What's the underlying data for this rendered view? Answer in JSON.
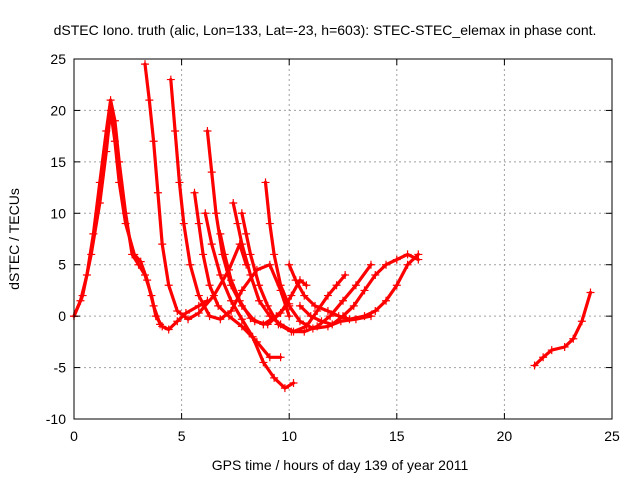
{
  "chart_data": {
    "type": "scatter",
    "title": "dSTEC Iono. truth (alic, Lon=133, Lat=-23, h=603): STEC-STEC_elemax in phase cont.",
    "xlabel": "GPS time / hours of day 139 of year 2011",
    "ylabel": "dSTEC  / TECUs",
    "xlim": [
      0,
      25
    ],
    "ylim": [
      -10,
      25
    ],
    "xticks": [
      0,
      5,
      10,
      15,
      20,
      25
    ],
    "yticks": [
      -10,
      -5,
      0,
      5,
      10,
      15,
      20,
      25
    ],
    "xtick_labels": [
      "0",
      "5",
      "10",
      "15",
      "20",
      "25"
    ],
    "ytick_labels": [
      "-10",
      "-5",
      "0",
      "5",
      "10",
      "15",
      "20",
      "25"
    ],
    "grid": true,
    "marker": "plus",
    "color": "#ff0000",
    "series": [
      {
        "points": [
          [
            0,
            0
          ],
          [
            0.3,
            1.5
          ],
          [
            0.6,
            4
          ],
          [
            0.9,
            8
          ],
          [
            1.2,
            13
          ],
          [
            1.5,
            18
          ],
          [
            1.7,
            21
          ],
          [
            1.9,
            19
          ],
          [
            2.1,
            15
          ],
          [
            2.4,
            10
          ],
          [
            2.7,
            6
          ],
          [
            3,
            5
          ],
          [
            3.3,
            4
          ],
          [
            3.6,
            2
          ],
          [
            3.8,
            0
          ],
          [
            4.1,
            -1
          ],
          [
            4.4,
            -1.3
          ],
          [
            4.8,
            -0.5
          ],
          [
            5.2,
            0.3
          ],
          [
            5.8,
            1
          ],
          [
            6.2,
            1.5
          ]
        ]
      },
      {
        "points": [
          [
            0,
            0
          ],
          [
            0.4,
            2
          ],
          [
            0.8,
            6
          ],
          [
            1.2,
            11
          ],
          [
            1.5,
            16
          ],
          [
            1.7,
            20
          ],
          [
            1.9,
            17
          ],
          [
            2.1,
            13
          ],
          [
            2.4,
            9
          ],
          [
            2.8,
            6
          ],
          [
            3.1,
            5.3
          ],
          [
            3.4,
            3.5
          ],
          [
            3.7,
            1
          ],
          [
            4,
            -0.8
          ]
        ]
      },
      {
        "points": [
          [
            3.3,
            24.5
          ],
          [
            3.5,
            21
          ],
          [
            3.7,
            17
          ],
          [
            3.9,
            12
          ],
          [
            4.1,
            7
          ],
          [
            4.4,
            3
          ],
          [
            4.8,
            0.5
          ],
          [
            5.3,
            -0.3
          ],
          [
            5.8,
            0.3
          ],
          [
            6.5,
            2
          ],
          [
            7.2,
            4.5
          ],
          [
            7.7,
            7
          ],
          [
            8,
            5
          ]
        ]
      },
      {
        "points": [
          [
            4.5,
            23
          ],
          [
            4.7,
            18
          ],
          [
            4.9,
            13
          ],
          [
            5.1,
            9
          ],
          [
            5.4,
            5
          ],
          [
            5.8,
            2
          ],
          [
            6.3,
            0
          ],
          [
            6.8,
            -0.3
          ],
          [
            7.3,
            0.5
          ],
          [
            7.8,
            2.5
          ],
          [
            8.5,
            4.5
          ],
          [
            9.1,
            5
          ],
          [
            9.6,
            2.5
          ],
          [
            10,
            0
          ]
        ]
      },
      {
        "points": [
          [
            5.6,
            12
          ],
          [
            5.8,
            9
          ],
          [
            6,
            6
          ],
          [
            6.3,
            3
          ],
          [
            6.7,
            1
          ],
          [
            7.2,
            0
          ],
          [
            7.8,
            -1
          ],
          [
            8.5,
            -2.5
          ],
          [
            9.1,
            -4
          ],
          [
            9.6,
            -4
          ]
        ]
      },
      {
        "points": [
          [
            6.2,
            18
          ],
          [
            6.4,
            14
          ],
          [
            6.6,
            10
          ],
          [
            6.9,
            6
          ],
          [
            7.3,
            3
          ],
          [
            7.8,
            1
          ],
          [
            8.4,
            -0.5
          ],
          [
            9,
            -0.8
          ],
          [
            9.6,
            0.3
          ],
          [
            10.1,
            2
          ],
          [
            10.5,
            3.5
          ],
          [
            10.8,
            3
          ]
        ]
      },
      {
        "points": [
          [
            6.1,
            10
          ],
          [
            6.4,
            7
          ],
          [
            6.8,
            4
          ],
          [
            7.3,
            1.5
          ],
          [
            7.8,
            -0.3
          ],
          [
            8.3,
            -2
          ],
          [
            8.8,
            -4.5
          ],
          [
            9.3,
            -6
          ],
          [
            9.8,
            -7
          ],
          [
            10.2,
            -6.5
          ]
        ]
      },
      {
        "points": [
          [
            6.8,
            8
          ],
          [
            7,
            6
          ],
          [
            7.3,
            3.5
          ],
          [
            7.7,
            1.5
          ],
          [
            8.2,
            -0.2
          ],
          [
            8.8,
            -0.8
          ],
          [
            9.4,
            0
          ],
          [
            10,
            1.2
          ]
        ]
      },
      {
        "points": [
          [
            7.4,
            11
          ],
          [
            7.6,
            9
          ],
          [
            7.8,
            7
          ],
          [
            8.2,
            4
          ],
          [
            8.6,
            1.5
          ],
          [
            9.1,
            0
          ],
          [
            9.6,
            -0.8
          ],
          [
            10.2,
            -1.5
          ],
          [
            10.8,
            -1
          ],
          [
            11.3,
            0.5
          ],
          [
            11.8,
            2
          ],
          [
            12.2,
            3
          ],
          [
            12.6,
            4
          ]
        ]
      },
      {
        "points": [
          [
            7.8,
            10
          ],
          [
            8,
            8
          ],
          [
            8.2,
            6
          ],
          [
            8.6,
            3
          ],
          [
            9,
            1
          ],
          [
            9.5,
            -0.8
          ],
          [
            10.1,
            -1.5
          ],
          [
            10.7,
            -1.5
          ],
          [
            11.3,
            -1
          ],
          [
            11.9,
            0
          ],
          [
            12.5,
            1.5
          ],
          [
            13.1,
            3
          ],
          [
            13.8,
            5
          ]
        ]
      },
      {
        "points": [
          [
            8.9,
            13
          ],
          [
            9.1,
            9
          ],
          [
            9.3,
            6
          ],
          [
            9.6,
            3
          ],
          [
            10,
            1
          ],
          [
            10.5,
            -0.5
          ],
          [
            11.1,
            -1.2
          ],
          [
            11.8,
            -1
          ],
          [
            12.4,
            -0.5
          ],
          [
            13.1,
            -0.3
          ],
          [
            13.8,
            0
          ]
        ]
      },
      {
        "points": [
          [
            10,
            5
          ],
          [
            10.3,
            3.5
          ],
          [
            10.7,
            2
          ],
          [
            11.2,
            1
          ],
          [
            11.8,
            0.5
          ],
          [
            12.3,
            0
          ],
          [
            12.8,
            -0.3
          ],
          [
            13.5,
            0
          ],
          [
            14,
            0.5
          ],
          [
            14.5,
            1.5
          ],
          [
            15,
            3
          ],
          [
            15.5,
            5
          ],
          [
            16,
            6
          ]
        ]
      },
      {
        "points": [
          [
            10.5,
            1
          ],
          [
            11,
            0
          ],
          [
            11.5,
            -0.5
          ],
          [
            12,
            -0.8
          ],
          [
            12.5,
            0
          ],
          [
            13,
            1
          ],
          [
            13.5,
            2.5
          ],
          [
            14,
            4
          ],
          [
            14.5,
            5
          ],
          [
            15,
            5.5
          ],
          [
            15.5,
            6
          ],
          [
            16,
            5.5
          ]
        ]
      },
      {
        "points": [
          [
            21.4,
            -4.8
          ],
          [
            21.8,
            -4
          ],
          [
            22.2,
            -3.3
          ],
          [
            22.8,
            -3
          ],
          [
            23.2,
            -2.2
          ],
          [
            23.6,
            -0.5
          ],
          [
            24,
            2.3
          ]
        ]
      }
    ]
  }
}
